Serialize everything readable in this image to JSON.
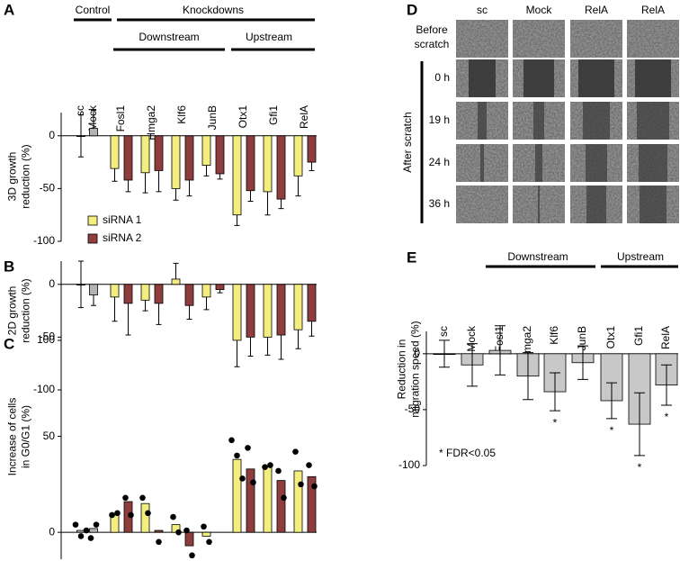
{
  "chart_data": [
    {
      "type": "bar",
      "panel": "A",
      "y_label": [
        "3D growth",
        "reduction (%)"
      ],
      "groups": [
        "Control",
        "Knockdowns"
      ],
      "subgroups": [
        "Downstream",
        "Upstream"
      ],
      "categories": [
        "sc",
        "Mock",
        "Fosl1",
        "Hmga2",
        "Klf6",
        "JunB",
        "Otx1",
        "Gfi1",
        "RelA"
      ],
      "ylim": [
        -100,
        22
      ],
      "yticks": [
        0,
        -50,
        -100
      ],
      "legend": "lower left",
      "series": [
        {
          "color": "#b3b3b3",
          "values": [
            0,
            7,
            null,
            null,
            null,
            null,
            null,
            null,
            null
          ],
          "errors": [
            20,
            17,
            null,
            null,
            null,
            null,
            null,
            null,
            null
          ]
        },
        {
          "name": "siRNA 1",
          "color": "#f4ee80",
          "values": [
            null,
            null,
            -31,
            -35,
            -50,
            -28,
            -75,
            -53,
            -38
          ],
          "errors": [
            null,
            null,
            12,
            19,
            11,
            10,
            10,
            22,
            19
          ]
        },
        {
          "name": "siRNA 2",
          "color": "#8e3c3c",
          "values": [
            null,
            null,
            -42,
            -33,
            -42,
            -36,
            -52,
            -60,
            -25
          ],
          "errors": [
            null,
            null,
            11,
            20,
            15,
            5,
            10,
            9,
            8
          ]
        }
      ]
    },
    {
      "type": "bar",
      "panel": "B",
      "y_label": [
        "2D growth",
        "reduction (%)"
      ],
      "ylim": [
        -100,
        22
      ],
      "yticks": [
        0,
        -50,
        -100
      ],
      "series": [
        {
          "color": "#b3b3b3",
          "values": [
            0,
            -10,
            null,
            null,
            null,
            null,
            null,
            null,
            null
          ],
          "errors": [
            22,
            10,
            null,
            null,
            null,
            null,
            null,
            null,
            null
          ]
        },
        {
          "color": "#f4ee80",
          "values": [
            null,
            null,
            -12,
            -15,
            5,
            -12,
            -53,
            -50,
            -43
          ],
          "errors": [
            null,
            null,
            23,
            10,
            15,
            12,
            25,
            17,
            18
          ]
        },
        {
          "color": "#8e3c3c",
          "values": [
            null,
            null,
            -18,
            -18,
            -20,
            -5,
            -50,
            -48,
            -35
          ],
          "errors": [
            null,
            null,
            30,
            20,
            13,
            3,
            18,
            23,
            14
          ]
        }
      ]
    },
    {
      "type": "bar",
      "panel": "C",
      "y_label": [
        "Increase of cells",
        "in G0/G1 (%)"
      ],
      "ylim": [
        -14,
        100
      ],
      "yticks": [
        0,
        50,
        100
      ],
      "series": [
        {
          "color": "#b3b3b3",
          "values": [
            1,
            2,
            null,
            null,
            null,
            null,
            null,
            null,
            null
          ],
          "points": [
            [
              4,
              -2,
              1
            ],
            [
              -3,
              4
            ],
            null,
            null,
            null,
            null,
            null,
            null,
            null
          ]
        },
        {
          "color": "#f4ee80",
          "values": [
            null,
            null,
            9,
            15,
            4,
            -2,
            38,
            34,
            32
          ],
          "points": [
            null,
            null,
            [
              9,
              10
            ],
            [
              18,
              10
            ],
            [
              8,
              0
            ],
            [
              3,
              -5
            ],
            [
              48,
              40,
              28
            ],
            [
              34,
              35
            ],
            [
              42,
              25
            ]
          ]
        },
        {
          "color": "#8e3c3c",
          "values": [
            null,
            null,
            16,
            1,
            -7,
            null,
            33,
            27,
            29
          ],
          "points": [
            null,
            null,
            [
              18,
              9
            ],
            [
              -5
            ],
            [
              1,
              -12
            ],
            null,
            [
              44,
              26
            ],
            [
              32,
              18
            ],
            [
              35,
              24
            ]
          ]
        }
      ]
    },
    {
      "type": "bar",
      "panel": "E",
      "y_label": [
        "Reduction in",
        "migration speed (%)"
      ],
      "groups": [
        "Downstream",
        "Upstream"
      ],
      "categories": [
        "sc",
        "Mock",
        "Fosl1",
        "Hmga2",
        "Klf6",
        "JunB",
        "Otx1",
        "Gfi1",
        "RelA"
      ],
      "ylim": [
        -100,
        20
      ],
      "yticks": [
        0,
        -50,
        -100
      ],
      "significance": [
        null,
        null,
        null,
        null,
        "*",
        null,
        "*",
        "*",
        "*"
      ],
      "annotation": "* FDR<0.05",
      "series": [
        {
          "color": "#c8c8c8",
          "values": [
            0,
            -10,
            3,
            -20,
            -34,
            -8,
            -42,
            -63,
            -28
          ],
          "errors": [
            12,
            19,
            22,
            21,
            17,
            15,
            16,
            28,
            18
          ]
        }
      ]
    }
  ],
  "panel_d": {
    "panel": "D",
    "columns": [
      "sc",
      "Mock",
      "RelA",
      "RelA"
    ],
    "before_label": [
      "Before",
      "scratch"
    ],
    "after_label": "After scratch",
    "times": [
      "0 h",
      "19 h",
      "24 h",
      "36 h"
    ]
  }
}
